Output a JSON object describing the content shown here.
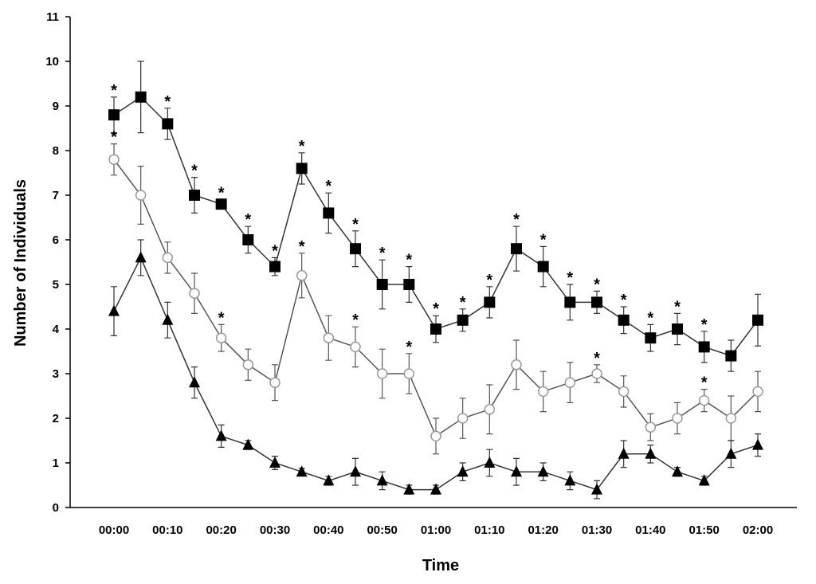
{
  "chart_data": {
    "type": "line",
    "x_label": "Time",
    "y_label": "Number of Individuals",
    "categories": [
      "00:00",
      null,
      "00:10",
      null,
      "00:20",
      null,
      "00:30",
      null,
      "00:40",
      null,
      "00:50",
      null,
      "01:00",
      null,
      "01:10",
      null,
      "01:20",
      null,
      "01:30",
      null,
      "01:40",
      null,
      "01:50",
      null,
      "02:00"
    ],
    "ylim": [
      0,
      11
    ],
    "yticks": [
      0,
      1,
      2,
      3,
      4,
      5,
      6,
      7,
      8,
      9,
      10,
      11
    ],
    "series": [
      {
        "marker": "square",
        "color": "#000000",
        "line_color": "#333333",
        "values": [
          8.8,
          9.2,
          8.6,
          7.0,
          6.8,
          6.0,
          5.4,
          7.6,
          6.6,
          5.8,
          5.0,
          5.0,
          4.0,
          4.2,
          4.6,
          5.8,
          5.4,
          4.6,
          4.6,
          4.2,
          3.8,
          4.0,
          3.6,
          3.4,
          4.2
        ],
        "errors": [
          0.4,
          0.8,
          0.35,
          0.4,
          0.1,
          0.3,
          0.2,
          0.35,
          0.45,
          0.4,
          0.55,
          0.4,
          0.3,
          0.25,
          0.35,
          0.5,
          0.45,
          0.4,
          0.25,
          0.3,
          0.3,
          0.35,
          0.35,
          0.35,
          0.58
        ],
        "annotations": [
          "*",
          null,
          "*",
          "*",
          "*",
          "*",
          "*",
          "*",
          "*",
          "*",
          "*",
          "*",
          "*",
          "*",
          "*",
          "*",
          "*",
          "*",
          "*",
          "*",
          "*",
          "*",
          "*",
          null,
          null
        ]
      },
      {
        "marker": "circle",
        "color": "#999999",
        "line_color": "#555555",
        "values": [
          7.8,
          7.0,
          5.6,
          4.8,
          3.8,
          3.2,
          2.8,
          5.2,
          3.8,
          3.6,
          3.0,
          3.0,
          1.6,
          2.0,
          2.2,
          3.2,
          2.6,
          2.8,
          3.0,
          2.6,
          1.8,
          2.0,
          2.4,
          2.0,
          2.6
        ],
        "errors": [
          0.35,
          0.65,
          0.35,
          0.45,
          0.3,
          0.35,
          0.4,
          0.5,
          0.5,
          0.45,
          0.55,
          0.45,
          0.4,
          0.45,
          0.55,
          0.55,
          0.45,
          0.45,
          0.2,
          0.35,
          0.3,
          0.35,
          0.25,
          0.5,
          0.45
        ],
        "annotations": [
          "*",
          null,
          null,
          null,
          "*",
          null,
          null,
          "*",
          null,
          "*",
          null,
          "*",
          null,
          null,
          null,
          null,
          null,
          null,
          "*",
          null,
          null,
          null,
          "*",
          null,
          null
        ]
      },
      {
        "marker": "triangle",
        "color": "#000000",
        "line_color": "#333333",
        "values": [
          4.4,
          5.6,
          4.2,
          2.8,
          1.6,
          1.4,
          1.0,
          0.8,
          0.6,
          0.8,
          0.6,
          0.4,
          0.4,
          0.8,
          1.0,
          0.8,
          0.8,
          0.6,
          0.4,
          1.2,
          1.2,
          0.8,
          0.6,
          1.2,
          1.4
        ],
        "errors": [
          0.55,
          0.4,
          0.4,
          0.35,
          0.25,
          0.1,
          0.15,
          0.08,
          0.1,
          0.3,
          0.2,
          0.1,
          0.1,
          0.2,
          0.3,
          0.3,
          0.2,
          0.2,
          0.2,
          0.3,
          0.2,
          0.1,
          0.1,
          0.3,
          0.25
        ],
        "annotations": [
          null,
          null,
          null,
          null,
          null,
          null,
          null,
          null,
          null,
          null,
          null,
          null,
          null,
          null,
          null,
          null,
          null,
          null,
          null,
          null,
          null,
          null,
          null,
          null,
          null
        ]
      }
    ]
  }
}
